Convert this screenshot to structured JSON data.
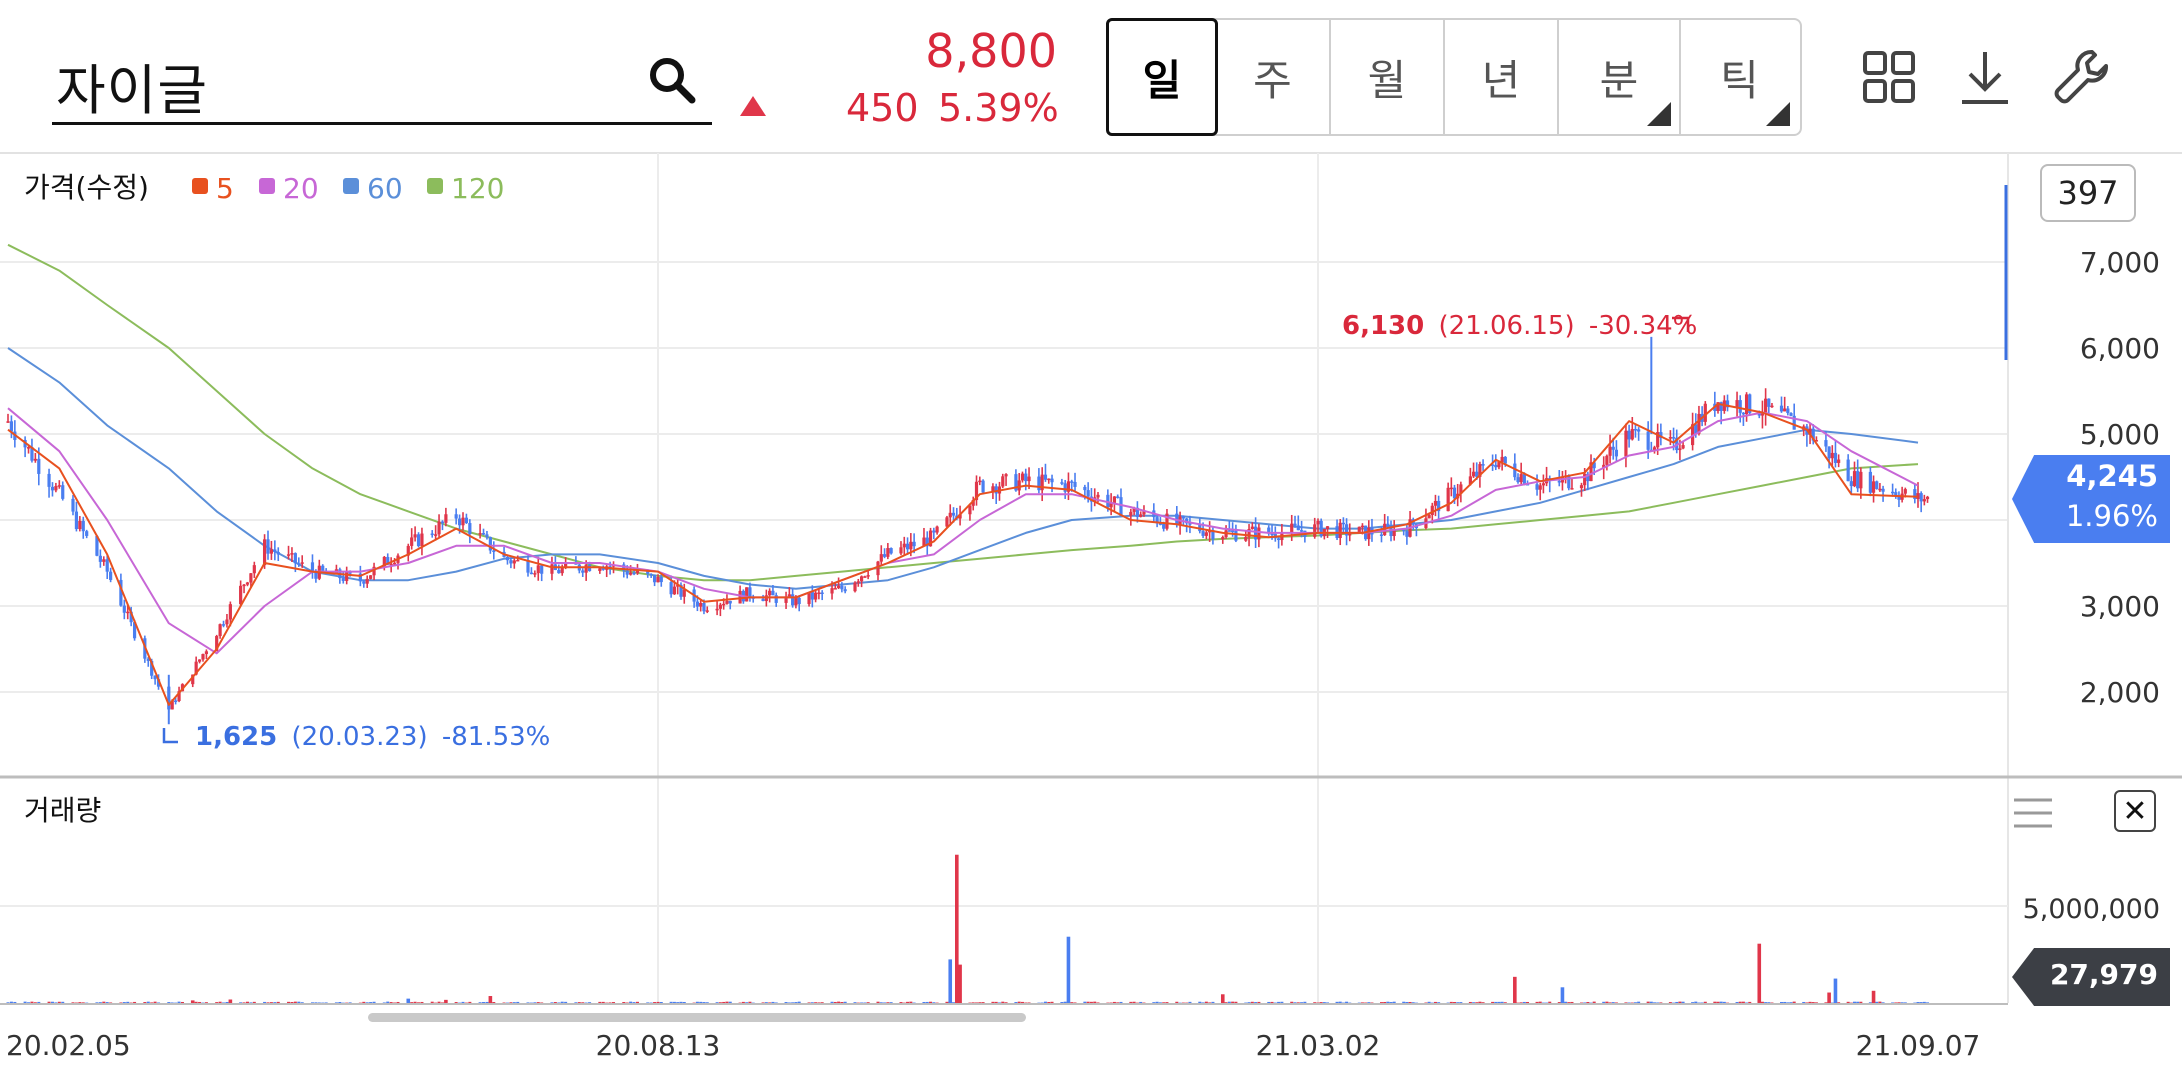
{
  "header": {
    "search_value": "자이글",
    "price": "8,800",
    "change_abs": "450",
    "change_pct": "5.39%",
    "change_direction": "up",
    "periods": [
      {
        "label": "일",
        "active": true,
        "has_submenu": false
      },
      {
        "label": "주",
        "active": false,
        "has_submenu": false
      },
      {
        "label": "월",
        "active": false,
        "has_submenu": false
      },
      {
        "label": "년",
        "active": false,
        "has_submenu": false
      },
      {
        "label": "분",
        "active": false,
        "has_submenu": true
      },
      {
        "label": "틱",
        "active": false,
        "has_submenu": true
      }
    ],
    "tools": [
      "grid-layout-icon",
      "download-icon",
      "wrench-icon"
    ]
  },
  "price_panel": {
    "title": "가격(수정)",
    "indicator_count": "397",
    "current_price": "4,245",
    "current_pct": "1.96%",
    "high_label": {
      "value": "6,130",
      "date": "(21.06.15)",
      "pct": "-30.34%"
    },
    "low_label": {
      "value": "1,625",
      "date": "(20.03.23)",
      "pct": "-81.53%"
    }
  },
  "volume_panel": {
    "title": "거래량",
    "current_volume": "27,979",
    "y_tick": "5,000,000"
  },
  "colors": {
    "up": "#e0364a",
    "down": "#4a7ef0",
    "ma5": "#e8511f",
    "ma20": "#c767d6",
    "ma60": "#5b8fd9",
    "ma120": "#8cbc5c",
    "grid": "#ececec"
  },
  "chart_data": {
    "type": "candlestick",
    "x_ticks": [
      "20.02.05",
      "20.08.13",
      "21.03.02",
      "21.09.07"
    ],
    "y_ticks": [
      "2,000",
      "3,000",
      "5,000",
      "6,000",
      "7,000"
    ],
    "y_range": [
      1000,
      8000
    ],
    "legend": [
      {
        "name": "5",
        "color": "#e8511f"
      },
      {
        "name": "20",
        "color": "#c767d6"
      },
      {
        "name": "60",
        "color": "#5b8fd9"
      },
      {
        "name": "120",
        "color": "#8cbc5c"
      }
    ],
    "close_path": [
      [
        "20.02.05",
        5150
      ],
      [
        "20.02.20",
        4300
      ],
      [
        "20.03.05",
        3400
      ],
      [
        "20.03.23",
        1800
      ],
      [
        "20.04.06",
        2700
      ],
      [
        "20.04.20",
        3700
      ],
      [
        "20.05.04",
        3400
      ],
      [
        "20.05.18",
        3300
      ],
      [
        "20.06.01",
        3700
      ],
      [
        "20.06.15",
        4050
      ],
      [
        "20.06.29",
        3550
      ],
      [
        "20.07.13",
        3400
      ],
      [
        "20.07.27",
        3500
      ],
      [
        "20.08.13",
        3300
      ],
      [
        "20.08.27",
        3000
      ],
      [
        "20.09.10",
        3150
      ],
      [
        "20.09.24",
        3050
      ],
      [
        "20.10.08",
        3200
      ],
      [
        "20.10.22",
        3600
      ],
      [
        "20.11.05",
        3800
      ],
      [
        "20.11.19",
        4400
      ],
      [
        "20.12.03",
        4450
      ],
      [
        "20.12.17",
        4400
      ],
      [
        "21.01.04",
        4100
      ],
      [
        "21.01.18",
        3950
      ],
      [
        "21.02.01",
        3850
      ],
      [
        "21.02.15",
        3850
      ],
      [
        "21.03.02",
        3900
      ],
      [
        "21.03.16",
        3850
      ],
      [
        "21.03.30",
        3900
      ],
      [
        "21.04.13",
        4300
      ],
      [
        "21.04.27",
        4700
      ],
      [
        "21.05.11",
        4400
      ],
      [
        "21.05.25",
        4500
      ],
      [
        "21.06.08",
        5000
      ],
      [
        "21.06.22",
        4850
      ],
      [
        "21.07.06",
        5400
      ],
      [
        "21.07.20",
        5300
      ],
      [
        "21.08.03",
        5050
      ],
      [
        "21.08.17",
        4500
      ],
      [
        "21.09.07",
        4245
      ]
    ],
    "ma5": [
      [
        "20.02.05",
        5050
      ],
      [
        "20.02.20",
        4600
      ],
      [
        "20.03.05",
        3600
      ],
      [
        "20.03.23",
        1850
      ],
      [
        "20.04.06",
        2500
      ],
      [
        "20.04.20",
        3500
      ],
      [
        "20.05.04",
        3400
      ],
      [
        "20.05.18",
        3350
      ],
      [
        "20.06.01",
        3600
      ],
      [
        "20.06.15",
        3900
      ],
      [
        "20.06.29",
        3600
      ],
      [
        "20.07.13",
        3450
      ],
      [
        "20.07.27",
        3450
      ],
      [
        "20.08.13",
        3400
      ],
      [
        "20.08.27",
        3050
      ],
      [
        "20.09.10",
        3100
      ],
      [
        "20.09.24",
        3100
      ],
      [
        "20.10.08",
        3300
      ],
      [
        "20.10.22",
        3500
      ],
      [
        "20.11.05",
        3750
      ],
      [
        "20.11.19",
        4300
      ],
      [
        "20.12.03",
        4400
      ],
      [
        "20.12.17",
        4350
      ],
      [
        "21.01.04",
        4000
      ],
      [
        "21.01.18",
        3950
      ],
      [
        "21.02.01",
        3850
      ],
      [
        "21.02.15",
        3800
      ],
      [
        "21.03.02",
        3850
      ],
      [
        "21.03.16",
        3850
      ],
      [
        "21.03.30",
        3950
      ],
      [
        "21.04.13",
        4200
      ],
      [
        "21.04.27",
        4700
      ],
      [
        "21.05.11",
        4450
      ],
      [
        "21.05.25",
        4550
      ],
      [
        "21.06.08",
        5150
      ],
      [
        "21.06.22",
        4900
      ],
      [
        "21.07.06",
        5350
      ],
      [
        "21.07.20",
        5250
      ],
      [
        "21.08.03",
        5050
      ],
      [
        "21.08.17",
        4300
      ],
      [
        "21.09.07",
        4270
      ]
    ],
    "ma20": [
      [
        "20.02.05",
        5300
      ],
      [
        "20.02.20",
        4800
      ],
      [
        "20.03.05",
        4000
      ],
      [
        "20.03.23",
        2800
      ],
      [
        "20.04.06",
        2450
      ],
      [
        "20.04.20",
        3000
      ],
      [
        "20.05.04",
        3400
      ],
      [
        "20.05.18",
        3400
      ],
      [
        "20.06.01",
        3500
      ],
      [
        "20.06.15",
        3700
      ],
      [
        "20.06.29",
        3700
      ],
      [
        "20.07.13",
        3500
      ],
      [
        "20.07.27",
        3500
      ],
      [
        "20.08.13",
        3400
      ],
      [
        "20.08.27",
        3200
      ],
      [
        "20.09.10",
        3100
      ],
      [
        "20.09.24",
        3100
      ],
      [
        "20.10.08",
        3300
      ],
      [
        "20.10.22",
        3500
      ],
      [
        "20.11.05",
        3600
      ],
      [
        "20.11.19",
        4000
      ],
      [
        "20.12.03",
        4300
      ],
      [
        "20.12.17",
        4300
      ],
      [
        "21.01.04",
        4150
      ],
      [
        "21.01.18",
        4000
      ],
      [
        "21.02.01",
        3900
      ],
      [
        "21.02.15",
        3850
      ],
      [
        "21.03.02",
        3850
      ],
      [
        "21.03.16",
        3850
      ],
      [
        "21.03.30",
        3900
      ],
      [
        "21.04.13",
        4050
      ],
      [
        "21.04.27",
        4350
      ],
      [
        "21.05.11",
        4450
      ],
      [
        "21.05.25",
        4500
      ],
      [
        "21.06.08",
        4750
      ],
      [
        "21.06.22",
        4850
      ],
      [
        "21.07.06",
        5150
      ],
      [
        "21.07.20",
        5250
      ],
      [
        "21.08.03",
        5150
      ],
      [
        "21.08.17",
        4800
      ],
      [
        "21.09.07",
        4400
      ]
    ],
    "ma60": [
      [
        "20.02.05",
        6000
      ],
      [
        "20.02.20",
        5600
      ],
      [
        "20.03.05",
        5100
      ],
      [
        "20.03.23",
        4600
      ],
      [
        "20.04.06",
        4100
      ],
      [
        "20.04.20",
        3700
      ],
      [
        "20.05.04",
        3400
      ],
      [
        "20.05.18",
        3300
      ],
      [
        "20.06.01",
        3300
      ],
      [
        "20.06.15",
        3400
      ],
      [
        "20.06.29",
        3550
      ],
      [
        "20.07.13",
        3600
      ],
      [
        "20.07.27",
        3600
      ],
      [
        "20.08.13",
        3500
      ],
      [
        "20.08.27",
        3350
      ],
      [
        "20.09.10",
        3250
      ],
      [
        "20.09.24",
        3200
      ],
      [
        "20.10.08",
        3250
      ],
      [
        "20.10.22",
        3300
      ],
      [
        "20.11.05",
        3450
      ],
      [
        "20.11.19",
        3650
      ],
      [
        "20.12.03",
        3850
      ],
      [
        "20.12.17",
        4000
      ],
      [
        "21.01.04",
        4050
      ],
      [
        "21.01.18",
        4050
      ],
      [
        "21.02.01",
        4000
      ],
      [
        "21.02.15",
        3950
      ],
      [
        "21.03.02",
        3900
      ],
      [
        "21.03.16",
        3900
      ],
      [
        "21.03.30",
        3950
      ],
      [
        "21.04.13",
        4000
      ],
      [
        "21.04.27",
        4100
      ],
      [
        "21.05.11",
        4200
      ],
      [
        "21.05.25",
        4350
      ],
      [
        "21.06.08",
        4500
      ],
      [
        "21.06.22",
        4650
      ],
      [
        "21.07.06",
        4850
      ],
      [
        "21.07.20",
        4950
      ],
      [
        "21.08.03",
        5050
      ],
      [
        "21.08.17",
        5000
      ],
      [
        "21.09.07",
        4900
      ]
    ],
    "ma120": [
      [
        "20.02.05",
        7200
      ],
      [
        "20.02.20",
        6900
      ],
      [
        "20.03.05",
        6500
      ],
      [
        "20.03.23",
        6000
      ],
      [
        "20.04.06",
        5500
      ],
      [
        "20.04.20",
        5000
      ],
      [
        "20.05.04",
        4600
      ],
      [
        "20.05.18",
        4300
      ],
      [
        "20.06.01",
        4100
      ],
      [
        "20.06.15",
        3900
      ],
      [
        "20.06.29",
        3750
      ],
      [
        "20.07.13",
        3600
      ],
      [
        "20.07.27",
        3450
      ],
      [
        "20.08.13",
        3350
      ],
      [
        "20.08.27",
        3300
      ],
      [
        "20.09.10",
        3300
      ],
      [
        "20.09.24",
        3350
      ],
      [
        "20.10.08",
        3400
      ],
      [
        "20.10.22",
        3450
      ],
      [
        "20.11.05",
        3500
      ],
      [
        "20.11.19",
        3550
      ],
      [
        "20.12.03",
        3600
      ],
      [
        "20.12.17",
        3650
      ],
      [
        "21.01.04",
        3700
      ],
      [
        "21.01.18",
        3750
      ],
      [
        "21.02.01",
        3780
      ],
      [
        "21.02.15",
        3800
      ],
      [
        "21.03.02",
        3820
      ],
      [
        "21.03.16",
        3850
      ],
      [
        "21.03.30",
        3880
      ],
      [
        "21.04.13",
        3900
      ],
      [
        "21.04.27",
        3950
      ],
      [
        "21.05.11",
        4000
      ],
      [
        "21.05.25",
        4050
      ],
      [
        "21.06.08",
        4100
      ],
      [
        "21.06.22",
        4200
      ],
      [
        "21.07.06",
        4300
      ],
      [
        "21.07.20",
        4400
      ],
      [
        "21.08.03",
        4500
      ],
      [
        "21.08.17",
        4600
      ],
      [
        "21.09.07",
        4650
      ]
    ],
    "volume_spikes": [
      [
        "20.03.30",
        150000
      ],
      [
        "20.04.10",
        200000
      ],
      [
        "20.06.01",
        250000
      ],
      [
        "20.06.12",
        180000
      ],
      [
        "20.06.25",
        400000
      ],
      [
        "20.11.10",
        2500000
      ],
      [
        "20.11.12",
        8500000
      ],
      [
        "20.11.13",
        2200000
      ],
      [
        "20.12.16",
        3800000
      ],
      [
        "21.02.01",
        500000
      ],
      [
        "21.05.03",
        1500000
      ],
      [
        "21.05.18",
        900000
      ],
      [
        "21.07.19",
        3400000
      ],
      [
        "21.08.10",
        600000
      ],
      [
        "21.08.12",
        1400000
      ],
      [
        "21.08.24",
        700000
      ]
    ],
    "volume_y_range": [
      0,
      9000000
    ]
  }
}
